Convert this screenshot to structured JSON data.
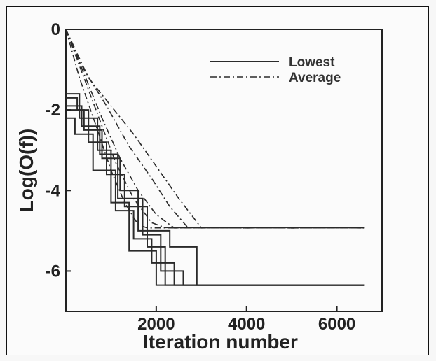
{
  "chart_data": {
    "type": "line",
    "xlabel": "Iteration number",
    "ylabel": "Log(O(f))",
    "xlim": [
      0,
      7000
    ],
    "ylim": [
      -7,
      0
    ],
    "xticks": [
      2000,
      4000,
      6000
    ],
    "yticks": [
      0,
      -2,
      -4,
      -6
    ],
    "xtick_labels": [
      "2000",
      "4000",
      "6000"
    ],
    "ytick_labels": [
      "0",
      "-2",
      "-4",
      "-6"
    ],
    "grid": false,
    "legend": {
      "placement": "top-right",
      "entries": [
        {
          "label": "Lowest",
          "style": "solid"
        },
        {
          "label": "Average",
          "style": "dashdot"
        }
      ]
    },
    "series": [
      {
        "group": "Lowest",
        "style": "solid",
        "x": [
          0,
          0,
          300,
          300,
          700,
          700,
          1000,
          1000,
          1400,
          1400,
          2000,
          2000,
          6600
        ],
        "y": [
          -1.6,
          -1.6,
          -1.6,
          -2.2,
          -2.2,
          -3.0,
          -3.0,
          -4.3,
          -4.3,
          -5.5,
          -5.5,
          -6.35,
          -6.35
        ]
      },
      {
        "group": "Lowest",
        "style": "solid",
        "x": [
          0,
          0,
          250,
          250,
          500,
          500,
          900,
          900,
          1300,
          1300,
          1800,
          1800,
          2200,
          2200,
          6600
        ],
        "y": [
          -1.7,
          -1.7,
          -1.7,
          -2.0,
          -2.0,
          -2.8,
          -2.8,
          -3.6,
          -3.6,
          -4.4,
          -4.4,
          -5.4,
          -5.4,
          -6.35,
          -6.35
        ]
      },
      {
        "group": "Lowest",
        "style": "solid",
        "x": [
          0,
          0,
          400,
          400,
          800,
          800,
          1200,
          1200,
          1600,
          1600,
          2300,
          2300,
          2900,
          2900,
          6600
        ],
        "y": [
          -2.0,
          -2.0,
          -2.0,
          -2.5,
          -2.5,
          -3.2,
          -3.2,
          -4.0,
          -4.0,
          -5.0,
          -5.0,
          -5.4,
          -5.4,
          -6.35,
          -6.35
        ]
      },
      {
        "group": "Lowest",
        "style": "solid",
        "x": [
          0,
          0,
          200,
          200,
          600,
          600,
          1100,
          1100,
          1500,
          1500,
          1900,
          1900,
          2400,
          2400,
          6600
        ],
        "y": [
          -2.2,
          -2.2,
          -2.2,
          -2.6,
          -2.6,
          -3.5,
          -3.5,
          -4.5,
          -4.5,
          -5.2,
          -5.2,
          -5.8,
          -5.8,
          -6.35,
          -6.35
        ]
      },
      {
        "group": "Lowest",
        "style": "solid",
        "x": [
          0,
          0,
          350,
          350,
          750,
          750,
          1150,
          1150,
          1700,
          1700,
          2100,
          2100,
          2600,
          2600,
          6600
        ],
        "y": [
          -1.9,
          -1.9,
          -1.9,
          -2.4,
          -2.4,
          -3.1,
          -3.1,
          -4.2,
          -4.2,
          -5.1,
          -5.1,
          -6.0,
          -6.0,
          -6.35,
          -6.35
        ]
      },
      {
        "group": "Average",
        "style": "dashdot",
        "x": [
          0,
          500,
          1000,
          1500,
          2000,
          2500,
          3000,
          4000,
          5000,
          6600
        ],
        "y": [
          0,
          -1.2,
          -1.9,
          -2.6,
          -3.4,
          -4.2,
          -4.93,
          -4.92,
          -4.93,
          -4.92
        ]
      },
      {
        "group": "Average",
        "style": "dashdot",
        "x": [
          0,
          400,
          900,
          1400,
          1900,
          2300,
          2700,
          4000,
          5000,
          6600
        ],
        "y": [
          0,
          -1.0,
          -1.9,
          -2.9,
          -3.7,
          -4.4,
          -4.92,
          -4.93,
          -4.92,
          -4.93
        ]
      },
      {
        "group": "Average",
        "style": "dashdot",
        "x": [
          0,
          400,
          800,
          1200,
          1600,
          2000,
          2400,
          4000,
          5000,
          6600
        ],
        "y": [
          0,
          -1.1,
          -2.2,
          -3.2,
          -4.0,
          -4.6,
          -4.93,
          -4.92,
          -4.93,
          -4.92
        ]
      },
      {
        "group": "Average",
        "style": "dashdot",
        "x": [
          0,
          300,
          700,
          1100,
          1500,
          1900,
          2200,
          4000,
          5000,
          6600
        ],
        "y": [
          0,
          -0.9,
          -2.1,
          -3.3,
          -4.2,
          -4.8,
          -4.92,
          -4.93,
          -4.92,
          -4.93
        ]
      },
      {
        "group": "Average",
        "style": "dashdot",
        "x": [
          0,
          300,
          700,
          1000,
          1300,
          1600,
          1800,
          4000,
          5000,
          6600
        ],
        "y": [
          0,
          -1.2,
          -2.5,
          -3.5,
          -4.3,
          -4.85,
          -4.93,
          -4.92,
          -4.93,
          -4.92
        ]
      }
    ]
  }
}
